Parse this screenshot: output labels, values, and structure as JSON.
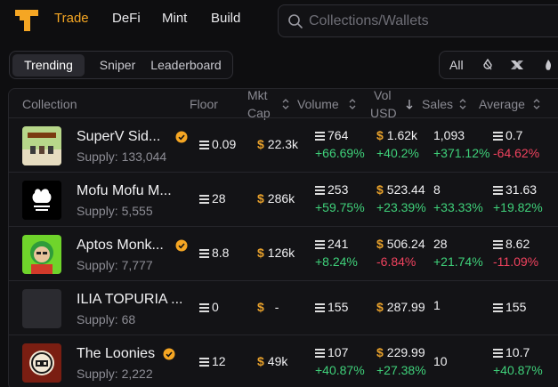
{
  "nav": {
    "trade": "Trade",
    "defi": "DeFi",
    "mint": "Mint",
    "build": "Build"
  },
  "search": {
    "placeholder": "Collections/Wallets"
  },
  "tabs": {
    "trending": "Trending",
    "sniper": "Sniper",
    "leaderboard": "Leaderboard"
  },
  "chains": {
    "all": "All"
  },
  "columns": {
    "collection": "Collection",
    "floor": "Floor",
    "mkt_cap_1": "Mkt",
    "mkt_cap_2": "Cap",
    "volume": "Volume",
    "vol_usd_1": "Vol",
    "vol_usd_2": "USD",
    "sales": "Sales",
    "average": "Average"
  },
  "colors": {
    "accent": "#f5a623",
    "up": "#3fd17a",
    "down": "#f0425e"
  },
  "rows": [
    {
      "name": "SuperV Sid...",
      "verified": true,
      "supply_label": "Supply:",
      "supply": "133,044",
      "floor": "0.09",
      "mkt_cap": "22.3k",
      "volume": "764",
      "volume_change": "+66.69%",
      "vol_usd": "1.62k",
      "vol_usd_change": "+40.2%",
      "sales": "1,093",
      "sales_change": "+371.12%",
      "average": "0.7",
      "average_change": "-64.62%"
    },
    {
      "name": "Mofu Mofu M...",
      "verified": false,
      "supply_label": "Supply:",
      "supply": "5,555",
      "floor": "28",
      "mkt_cap": "286k",
      "volume": "253",
      "volume_change": "+59.75%",
      "vol_usd": "523.44",
      "vol_usd_change": "+23.39%",
      "sales": "8",
      "sales_change": "+33.33%",
      "average": "31.63",
      "average_change": "+19.82%"
    },
    {
      "name": "Aptos Monk...",
      "verified": true,
      "supply_label": "Supply:",
      "supply": "7,777",
      "floor": "8.8",
      "mkt_cap": "126k",
      "volume": "241",
      "volume_change": "+8.24%",
      "vol_usd": "506.24",
      "vol_usd_change": "-6.84%",
      "sales": "28",
      "sales_change": "+21.74%",
      "average": "8.62",
      "average_change": "-11.09%"
    },
    {
      "name": "ILIA TOPURIA ...",
      "verified": false,
      "supply_label": "Supply:",
      "supply": "68",
      "floor": "0",
      "mkt_cap": "-",
      "volume": "155",
      "volume_change": "",
      "vol_usd": "287.99",
      "vol_usd_change": "",
      "sales": "1",
      "sales_change": "",
      "average": "155",
      "average_change": ""
    },
    {
      "name": "The Loonies",
      "verified": true,
      "supply_label": "Supply:",
      "supply": "2,222",
      "floor": "12",
      "mkt_cap": "49k",
      "volume": "107",
      "volume_change": "+40.87%",
      "vol_usd": "229.99",
      "vol_usd_change": "+27.38%",
      "sales": "10",
      "sales_change": "",
      "average": "10.7",
      "average_change": "+40.87%"
    }
  ]
}
